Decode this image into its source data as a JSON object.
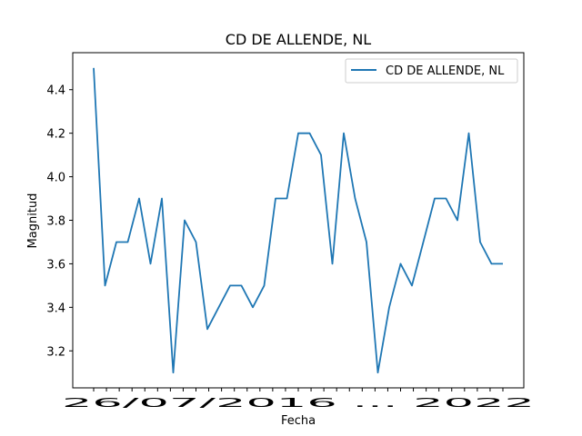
{
  "chart_data": {
    "type": "line",
    "title": "CD DE ALLENDE, NL",
    "xlabel": "Fecha",
    "ylabel": "Magnitud",
    "ylim": [
      3.03,
      4.57
    ],
    "yticks": [
      "3.2",
      "3.4",
      "3.6",
      "3.8",
      "4.0",
      "4.2",
      "4.4"
    ],
    "x_tick_labels_overlapping": "26/07/2016 ... 2022",
    "legend_position": "top-right",
    "grid": false,
    "line_color": "#1f77b4",
    "series": [
      {
        "name": "CD DE ALLENDE, NL",
        "values": [
          4.5,
          3.5,
          3.7,
          3.7,
          3.9,
          3.6,
          3.9,
          3.1,
          3.8,
          3.7,
          3.3,
          3.4,
          3.5,
          3.5,
          3.4,
          3.5,
          3.9,
          3.9,
          4.2,
          4.2,
          4.1,
          3.6,
          4.2,
          3.9,
          3.7,
          3.1,
          3.4,
          3.6,
          3.5,
          3.7,
          3.9,
          3.9,
          3.8,
          4.2,
          3.7,
          3.6,
          3.6
        ]
      }
    ]
  }
}
